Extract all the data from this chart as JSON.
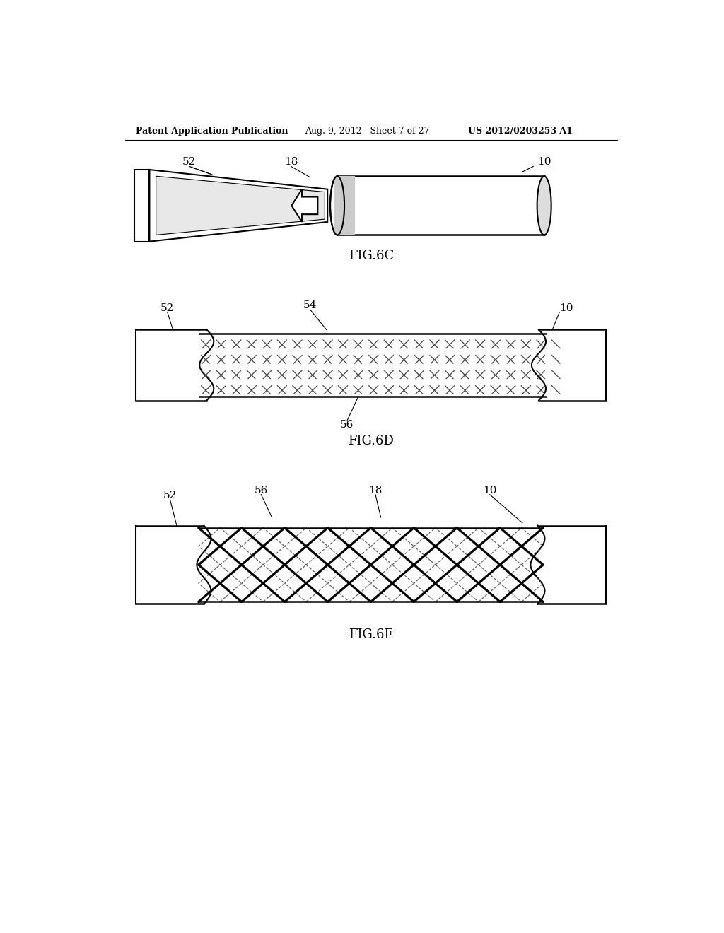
{
  "bg_color": "#ffffff",
  "text_color": "#000000",
  "header_left": "Patent Application Publication",
  "header_center": "Aug. 9, 2012   Sheet 7 of 27",
  "header_right": "US 2012/0203253 A1",
  "fig6c_label": "FIG.6C",
  "fig6d_label": "FIG.6D",
  "fig6e_label": "FIG.6E",
  "line_color": "#000000",
  "line_width": 1.5,
  "fill_color": "#f5f5f5"
}
